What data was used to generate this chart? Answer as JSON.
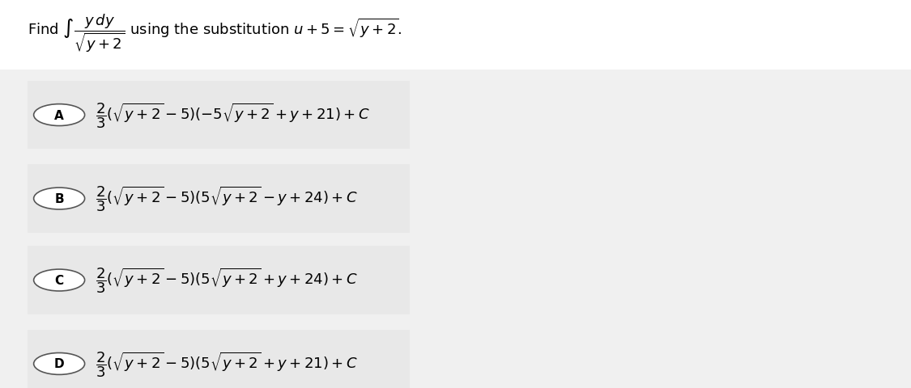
{
  "background_color": "#f0f0f0",
  "answer_box_color": "#e8e8e8",
  "text_color": "#000000",
  "title_text": "Find $\\int \\dfrac{y\\,dy}{\\sqrt{y+2}}$ using the substitution $u+5=\\sqrt{y+2}$.",
  "options": [
    {
      "label": "A",
      "formula": "$\\dfrac{2}{3}(\\sqrt{y+2}-5)(-5\\sqrt{y+2}+y+21)+C$"
    },
    {
      "label": "B",
      "formula": "$\\dfrac{2}{3}(\\sqrt{y+2}-5)(5\\sqrt{y+2}-y+24)+C$"
    },
    {
      "label": "C",
      "formula": "$\\dfrac{2}{3}(\\sqrt{y+2}-5)(5\\sqrt{y+2}+y+24)+C$"
    },
    {
      "label": "D",
      "formula": "$\\dfrac{2}{3}(\\sqrt{y+2}-5)(5\\sqrt{y+2}+y+21)+C$"
    }
  ],
  "fig_width": 11.25,
  "fig_height": 4.81,
  "dpi": 100
}
